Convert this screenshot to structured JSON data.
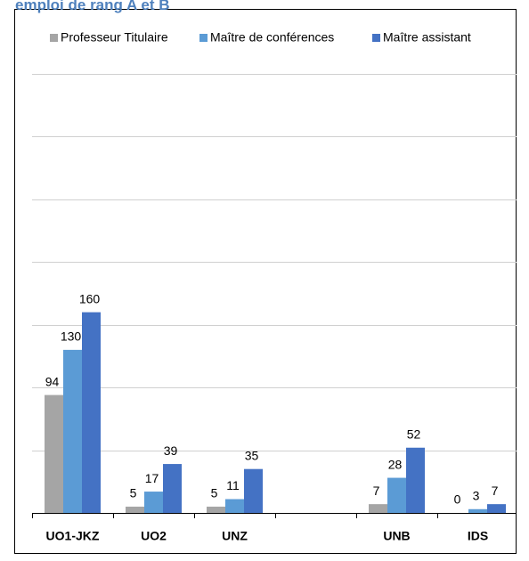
{
  "chart_data": {
    "type": "bar",
    "title": "emploi de rang A et B",
    "categories": [
      "UO1-JKZ",
      "UO2",
      "UNZ",
      null,
      "UNB",
      "IDS"
    ],
    "series": [
      {
        "name": "Professeur Titulaire",
        "color": "#a5a5a5",
        "values": [
          94,
          5,
          5,
          null,
          7,
          0
        ]
      },
      {
        "name": "Maître de conférences",
        "color": "#5b9bd5",
        "values": [
          130,
          17,
          11,
          null,
          28,
          3
        ]
      },
      {
        "name": "Maître assistant",
        "color": "#4472c4",
        "values": [
          160,
          39,
          35,
          null,
          52,
          7
        ]
      }
    ],
    "ylim": [
      0,
      350
    ],
    "yticks": [
      0,
      50,
      100,
      150,
      200,
      250,
      300,
      350
    ],
    "grid": true,
    "legend": "top"
  }
}
